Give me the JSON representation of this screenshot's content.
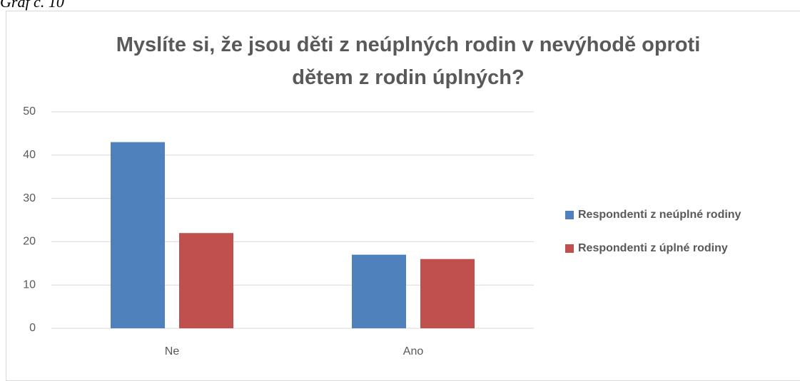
{
  "caption": "Graf č. 10",
  "chart_data": {
    "type": "bar",
    "title": "Myslíte si, že jsou děti z neúplných rodin v nevýhodě oproti dětem z rodin úplných?",
    "categories": [
      "Ne",
      "Ano"
    ],
    "series": [
      {
        "name": "Respondenti z neúplné rodiny",
        "color": "#4f81bd",
        "values": [
          43,
          17
        ]
      },
      {
        "name": "Respondenti z úplné rodiny",
        "color": "#c0504d",
        "values": [
          22,
          16
        ]
      }
    ],
    "ylim": [
      0,
      50
    ],
    "yticks": [
      0,
      10,
      20,
      30,
      40,
      50
    ],
    "grid": true,
    "legend": "right"
  }
}
